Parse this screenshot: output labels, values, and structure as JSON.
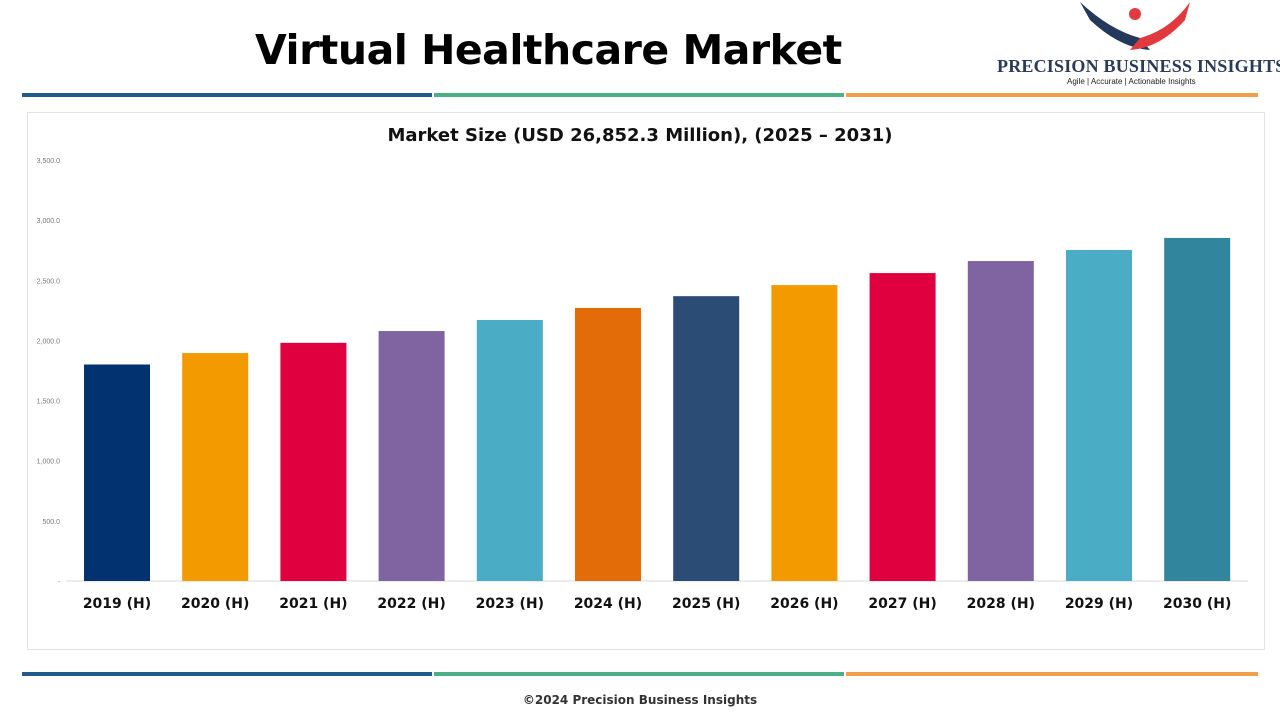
{
  "header": {
    "title": "Virtual Healthcare Market"
  },
  "logo": {
    "brand": "PRECISION BUSINESS INSIGHTS",
    "tagline": "Agile | Accurate | Actionable Insights"
  },
  "footer": {
    "copyright": "©2024 Precision Business Insights"
  },
  "colors": {
    "line_blue": "#1f5c8c",
    "line_green": "#4caf86",
    "line_orange": "#f0a04b"
  },
  "chart_data": {
    "type": "bar",
    "title": "Market Size (USD 26,852.3 Million), (2025 – 2031)",
    "categories": [
      "2019 (H)",
      "2020 (H)",
      "2021 (H)",
      "2022 (H)",
      "2023 (H)",
      "2024 (H)",
      "2025 (H)",
      "2026 (H)",
      "2027 (H)",
      "2028 (H)",
      "2029 (H)",
      "2030 (H)"
    ],
    "values": [
      1800,
      1895,
      1980,
      2078,
      2170,
      2270,
      2368,
      2460,
      2560,
      2660,
      2752,
      2852
    ],
    "colors": [
      "#033270",
      "#f29a00",
      "#e1003f",
      "#8064a2",
      "#4bacc6",
      "#e36c09",
      "#2b4c74",
      "#f29a00",
      "#e1003f",
      "#8064a2",
      "#4bacc6",
      "#31859c"
    ],
    "ylim": [
      0,
      3500
    ],
    "yticks": [
      "-",
      "500.0",
      "1,000.0",
      "1,500.0",
      "2,000.0",
      "2,500.0",
      "3,000.0",
      "3,500.0"
    ],
    "xlabel": "",
    "ylabel": "",
    "grid": false,
    "legend": "none"
  }
}
